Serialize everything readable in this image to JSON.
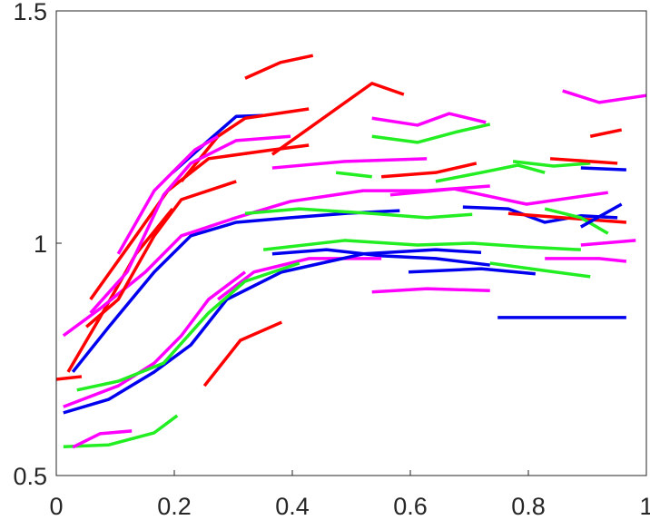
{
  "chart_data": {
    "type": "line",
    "xlim": [
      0,
      1
    ],
    "ylim": [
      0.5,
      1.5
    ],
    "xticks": [
      0,
      0.2,
      0.4,
      0.6,
      0.8,
      1
    ],
    "yticks": [
      0.5,
      1,
      1.5
    ],
    "series": [
      {
        "color": "#ff0000",
        "x": [
          0.32,
          0.38,
          0.435
        ],
        "values": [
          1.355,
          1.389,
          1.404
        ]
      },
      {
        "color": "#ff00ff",
        "x": [
          0.858,
          0.92,
          1.0
        ],
        "values": [
          1.328,
          1.303,
          1.318
        ]
      },
      {
        "color": "#ff0000",
        "x": [
          0.905,
          0.958
        ],
        "values": [
          1.23,
          1.244
        ]
      },
      {
        "color": "#ff0000",
        "x": [
          0.366,
          0.535,
          0.589
        ],
        "values": [
          1.191,
          1.344,
          1.32
        ]
      },
      {
        "color": "#0000ee",
        "x": [
          0.197,
          0.258,
          0.305,
          0.351
        ],
        "values": [
          1.152,
          1.221,
          1.273,
          1.275
        ]
      },
      {
        "color": "#ff0000",
        "x": [
          0.212,
          0.274,
          0.32,
          0.428
        ],
        "values": [
          1.133,
          1.23,
          1.269,
          1.289
        ]
      },
      {
        "color": "#ff00ff",
        "x": [
          0.105,
          0.166,
          0.235,
          0.274
        ],
        "values": [
          0.977,
          1.113,
          1.201,
          1.23
        ]
      },
      {
        "color": "#22ee22",
        "x": [
          0.535,
          0.612,
          0.68,
          0.735
        ],
        "values": [
          1.23,
          1.217,
          1.24,
          1.256
        ]
      },
      {
        "color": "#ff00ff",
        "x": [
          0.535,
          0.612,
          0.666,
          0.728
        ],
        "values": [
          1.269,
          1.254,
          1.279,
          1.26
        ]
      },
      {
        "color": "#ff0000",
        "x": [
          0.058,
          0.135,
          0.189,
          0.258,
          0.366,
          0.428
        ],
        "values": [
          0.879,
          1.016,
          1.113,
          1.182,
          1.201,
          1.211
        ]
      },
      {
        "color": "#ff0000",
        "x": [
          0,
          0.043
        ],
        "values": [
          0.707,
          0.713
        ]
      },
      {
        "color": "#ff0000",
        "x": [
          0.02,
          0.074,
          0.135,
          0.197
        ],
        "values": [
          0.723,
          0.84,
          0.977,
          1.074
        ]
      },
      {
        "color": "#0000ee",
        "x": [
          0.028,
          0.089,
          0.166,
          0.228,
          0.305,
          0.397,
          0.489,
          0.582
        ],
        "values": [
          0.723,
          0.82,
          0.938,
          1.016,
          1.045,
          1.055,
          1.064,
          1.07
        ]
      },
      {
        "color": "#ff00ff",
        "x": [
          0.012,
          0.074,
          0.151,
          0.212,
          0.305,
          0.397,
          0.52,
          0.628,
          0.735
        ],
        "values": [
          0.801,
          0.859,
          0.938,
          1.016,
          1.055,
          1.09,
          1.113,
          1.113,
          1.123
        ]
      },
      {
        "color": "#22ee22",
        "x": [
          0.474,
          0.535
        ],
        "values": [
          1.152,
          1.143
        ]
      },
      {
        "color": "#ff00ff",
        "x": [
          0.366,
          0.489,
          0.628
        ],
        "values": [
          1.162,
          1.176,
          1.182
        ]
      },
      {
        "color": "#ff0000",
        "x": [
          0.551,
          0.643,
          0.712
        ],
        "values": [
          1.143,
          1.152,
          1.172
        ]
      },
      {
        "color": "#22ee22",
        "x": [
          0.643,
          0.72,
          0.782,
          0.828
        ],
        "values": [
          1.133,
          1.152,
          1.168,
          1.152
        ]
      },
      {
        "color": "#22ee22",
        "x": [
          0.774,
          0.843,
          0.905
        ],
        "values": [
          1.176,
          1.166,
          1.172
        ]
      },
      {
        "color": "#ff0000",
        "x": [
          0.837,
          0.951
        ],
        "values": [
          1.182,
          1.172
        ]
      },
      {
        "color": "#0000ee",
        "x": [
          0.889,
          0.966
        ],
        "values": [
          1.162,
          1.158
        ]
      },
      {
        "color": "#ff00ff",
        "x": [
          0.566,
          0.674,
          0.797,
          0.935
        ],
        "values": [
          1.104,
          1.117,
          1.084,
          1.109
        ]
      },
      {
        "color": "#0000ee",
        "x": [
          0.689,
          0.766,
          0.828,
          0.889,
          0.951
        ],
        "values": [
          1.078,
          1.074,
          1.045,
          1.059,
          1.055
        ]
      },
      {
        "color": "#22ee22",
        "x": [
          0.32,
          0.412,
          0.535,
          0.628,
          0.705
        ],
        "values": [
          1.064,
          1.074,
          1.064,
          1.055,
          1.062
        ]
      },
      {
        "color": "#ff0000",
        "x": [
          0.766,
          0.858,
          0.966
        ],
        "values": [
          1.064,
          1.055,
          1.045
        ]
      },
      {
        "color": "#22ee22",
        "x": [
          0.828,
          0.889,
          0.935
        ],
        "values": [
          1.074,
          1.055,
          1.021
        ]
      },
      {
        "color": "#0000ee",
        "x": [
          0.889,
          0.958
        ],
        "values": [
          1.035,
          1.084
        ]
      },
      {
        "color": "#22ee22",
        "x": [
          0.351,
          0.489,
          0.612,
          0.705,
          0.797,
          0.889
        ],
        "values": [
          0.986,
          1.006,
          0.996,
          1.0,
          0.992,
          0.986
        ]
      },
      {
        "color": "#ff00ff",
        "x": [
          0.889,
          0.982
        ],
        "values": [
          0.996,
          1.006
        ]
      },
      {
        "color": "#0000ee",
        "x": [
          0.366,
          0.458,
          0.551,
          0.643,
          0.735
        ],
        "values": [
          0.977,
          0.986,
          0.973,
          0.967,
          0.953
        ]
      },
      {
        "color": "#22ee22",
        "x": [
          0.735,
          0.828,
          0.905
        ],
        "values": [
          0.957,
          0.941,
          0.928
        ]
      },
      {
        "color": "#ff00ff",
        "x": [
          0.828,
          0.92,
          0.966
        ],
        "values": [
          0.967,
          0.967,
          0.961
        ]
      },
      {
        "color": "#0000ee",
        "x": [
          0.597,
          0.72,
          0.812
        ],
        "values": [
          0.938,
          0.945,
          0.934
        ]
      },
      {
        "color": "#ff00ff",
        "x": [
          0.535,
          0.628,
          0.735
        ],
        "values": [
          0.895,
          0.902,
          0.898
        ]
      },
      {
        "color": "#0000ee",
        "x": [
          0.748,
          0.843,
          0.966
        ],
        "values": [
          0.84,
          0.84,
          0.84
        ]
      },
      {
        "color": "#ff00ff",
        "x": [
          0.274,
          0.335,
          0.428,
          0.551
        ],
        "values": [
          0.879,
          0.938,
          0.967,
          0.967
        ]
      },
      {
        "color": "#ff0000",
        "x": [
          0.251,
          0.312,
          0.382
        ],
        "values": [
          0.693,
          0.791,
          0.83
        ]
      },
      {
        "color": "#ff00ff",
        "x": [
          0.012,
          0.105,
          0.166,
          0.212,
          0.258,
          0.32
        ],
        "values": [
          0.648,
          0.693,
          0.742,
          0.801,
          0.879,
          0.938
        ]
      },
      {
        "color": "#22ee22",
        "x": [
          0.012,
          0.089,
          0.166,
          0.205
        ],
        "values": [
          0.562,
          0.566,
          0.592,
          0.629
        ]
      },
      {
        "color": "#ff00ff",
        "x": [
          0.028,
          0.074,
          0.128
        ],
        "values": [
          0.561,
          0.59,
          0.596
        ]
      },
      {
        "color": "#0000ee",
        "x": [
          0.012,
          0.089,
          0.166,
          0.228,
          0.289,
          0.382,
          0.52,
          0.643,
          0.72
        ],
        "values": [
          0.635,
          0.664,
          0.723,
          0.781,
          0.879,
          0.938,
          0.977,
          0.986,
          0.98
        ]
      },
      {
        "color": "#22ee22",
        "x": [
          0.035,
          0.105,
          0.182,
          0.258,
          0.32,
          0.412
        ],
        "values": [
          0.684,
          0.703,
          0.742,
          0.85,
          0.918,
          0.957
        ]
      },
      {
        "color": "#ff0000",
        "x": [
          0.051,
          0.105,
          0.166,
          0.212,
          0.305
        ],
        "values": [
          0.82,
          0.879,
          1.016,
          1.094,
          1.133
        ]
      },
      {
        "color": "#ff00ff",
        "x": [
          0.058,
          0.12,
          0.182,
          0.228,
          0.305,
          0.397
        ],
        "values": [
          0.85,
          0.938,
          1.104,
          1.172,
          1.221,
          1.23
        ]
      }
    ]
  }
}
